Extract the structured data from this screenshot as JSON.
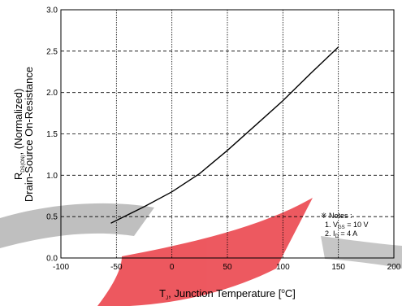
{
  "chart_data": {
    "type": "line",
    "xlabel": {
      "main": "T",
      "sub": "J",
      "rest": ", Junction Temperature [",
      "sup": "o",
      "unit": "C]"
    },
    "ylabel": {
      "line1": {
        "main": "R",
        "sub": "DS(ON)",
        "rest": ", (Normalized)"
      },
      "line2": "Drain-Source On-Resistance"
    },
    "xlim": [
      -100,
      200
    ],
    "ylim": [
      0.0,
      3.0
    ],
    "xticks": [
      "-100",
      "-50",
      "0",
      "50",
      "100",
      "150",
      "200"
    ],
    "yticks": [
      "0.0",
      "0.5",
      "1.0",
      "1.5",
      "2.0",
      "2.5",
      "3.0"
    ],
    "xtick_values": [
      -100,
      -50,
      0,
      50,
      100,
      150,
      200
    ],
    "ytick_values": [
      0,
      0.5,
      1.0,
      1.5,
      2.0,
      2.5,
      3.0
    ],
    "grid": true,
    "series": [
      {
        "x": [
          -55,
          -25,
          0,
          25,
          50,
          75,
          100,
          125,
          150
        ],
        "y": [
          0.42,
          0.62,
          0.8,
          1.02,
          1.3,
          1.6,
          1.9,
          2.23,
          2.55
        ]
      }
    ],
    "notes": {
      "header": "※ Notes :",
      "line1": {
        "prefix": "1. V",
        "sub": "GS",
        "rest": " = 10 V"
      },
      "line2": {
        "prefix": "2. I",
        "sub": "D",
        "rest": " = 4 A"
      }
    },
    "watermark_colors": {
      "red": "#e8343c",
      "gray": "#9a9a9a"
    }
  }
}
